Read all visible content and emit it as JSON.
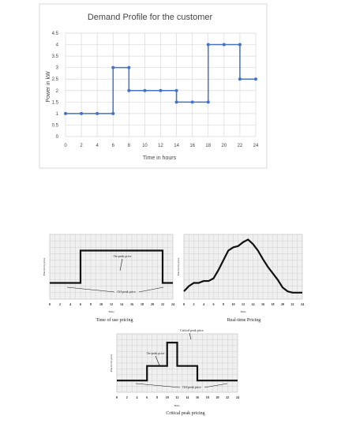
{
  "chart_data": [
    {
      "type": "line",
      "step": true,
      "title": "Demand Profile for the customer",
      "xlabel": "Time in hours",
      "ylabel": "Power in kW",
      "xlim": [
        0,
        24
      ],
      "ylim": [
        0,
        4.5
      ],
      "xticks": [
        "0",
        "2",
        "4",
        "6",
        "8",
        "10",
        "12",
        "14",
        "16",
        "18",
        "20",
        "22",
        "24"
      ],
      "yticks": [
        "0",
        "0.5",
        "1",
        "1.5",
        "2",
        "2.5",
        "3",
        "3.5",
        "4",
        "4.5"
      ],
      "grid": true,
      "color": "#4472C4",
      "x": [
        0,
        2,
        4,
        6,
        6,
        8,
        8,
        10,
        12,
        14,
        14,
        16,
        18,
        18,
        20,
        22,
        22,
        24
      ],
      "y": [
        1,
        1,
        1,
        1,
        3,
        3,
        2,
        2,
        2,
        2,
        1.5,
        1.5,
        1.5,
        4,
        4,
        4,
        2.5,
        2.5
      ]
    },
    {
      "type": "line",
      "step": true,
      "caption": "Time of use pricing",
      "xlabel": "Time",
      "ylabel": "Electricity price",
      "xticks": [
        "0",
        "2",
        "4",
        "6",
        "8",
        "10",
        "12",
        "14",
        "16",
        "18",
        "20",
        "22",
        "24"
      ],
      "annotations": [
        "On-peak price",
        "Off-peak price"
      ],
      "x": [
        0,
        6,
        6,
        22,
        22,
        24
      ],
      "y": [
        0.25,
        0.25,
        0.75,
        0.75,
        0.25,
        0.25
      ]
    },
    {
      "type": "line",
      "step": true,
      "caption": "Real-time Pricing",
      "xlabel": "Time",
      "ylabel": "Electricity price",
      "xticks": [
        "0",
        "2",
        "4",
        "6",
        "8",
        "10",
        "12",
        "14",
        "16",
        "18",
        "20",
        "22",
        "24"
      ],
      "x": [
        0,
        1,
        2,
        3,
        4,
        5,
        6,
        7,
        8,
        9,
        10,
        11,
        12,
        13,
        14,
        15,
        16,
        17,
        18,
        19,
        20,
        21,
        22,
        23,
        24
      ],
      "y": [
        0.12,
        0.2,
        0.25,
        0.25,
        0.28,
        0.28,
        0.32,
        0.45,
        0.6,
        0.75,
        0.8,
        0.82,
        0.88,
        0.92,
        0.85,
        0.75,
        0.62,
        0.5,
        0.4,
        0.3,
        0.18,
        0.12,
        0.1,
        0.1,
        0.1
      ]
    },
    {
      "type": "line",
      "step": true,
      "caption": "Critical peak pricing",
      "xlabel": "Time",
      "ylabel": "Electricity price",
      "xticks": [
        "0",
        "2",
        "4",
        "6",
        "8",
        "10",
        "12",
        "14",
        "16",
        "18",
        "20",
        "22",
        "24"
      ],
      "annotations": [
        "Critical peak price",
        "On-peak price",
        "Off-peak price"
      ],
      "x": [
        0,
        6,
        6,
        10,
        10,
        12,
        12,
        16,
        16,
        18,
        18,
        24
      ],
      "y": [
        0.2,
        0.2,
        0.45,
        0.45,
        0.85,
        0.85,
        0.45,
        0.45,
        0.2,
        0.2,
        0.2,
        0.2
      ]
    }
  ]
}
